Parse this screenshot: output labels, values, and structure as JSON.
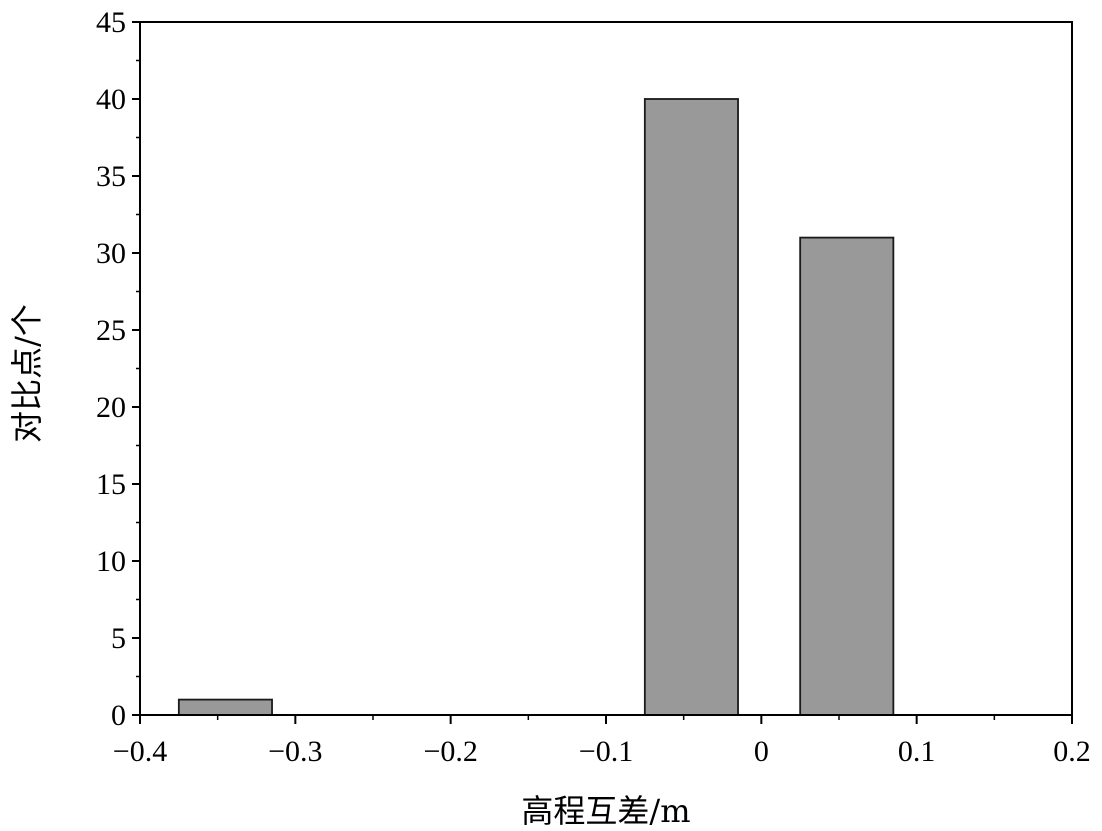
{
  "chart_data": {
    "type": "bar",
    "title": "",
    "xlabel": "高程互差/m",
    "ylabel": "对比点/个",
    "xlim": [
      -0.4,
      0.2
    ],
    "ylim": [
      0,
      45
    ],
    "x_major_ticks": [
      -0.4,
      -0.3,
      -0.2,
      -0.1,
      0,
      0.1,
      0.2
    ],
    "x_tick_labels": [
      "−0.4",
      "−0.3",
      "−0.2",
      "−0.1",
      "0",
      "0.1",
      "0.2"
    ],
    "x_minor_ticks": [
      -0.35,
      -0.25,
      -0.15,
      -0.05,
      0.05,
      0.15
    ],
    "y_major_ticks": [
      0,
      5,
      10,
      15,
      20,
      25,
      30,
      35,
      40,
      45
    ],
    "y_tick_labels": [
      "0",
      "5",
      "10",
      "15",
      "20",
      "25",
      "30",
      "35",
      "40",
      "45"
    ],
    "bars": [
      {
        "x_start": -0.375,
        "x_end": -0.315,
        "value": 1
      },
      {
        "x_start": -0.075,
        "x_end": -0.015,
        "value": 40
      },
      {
        "x_start": 0.025,
        "x_end": 0.085,
        "value": 31
      }
    ],
    "bar_color": "#999999",
    "bar_edge_color": "#1a1a1a",
    "grid": false,
    "legend": "none"
  }
}
